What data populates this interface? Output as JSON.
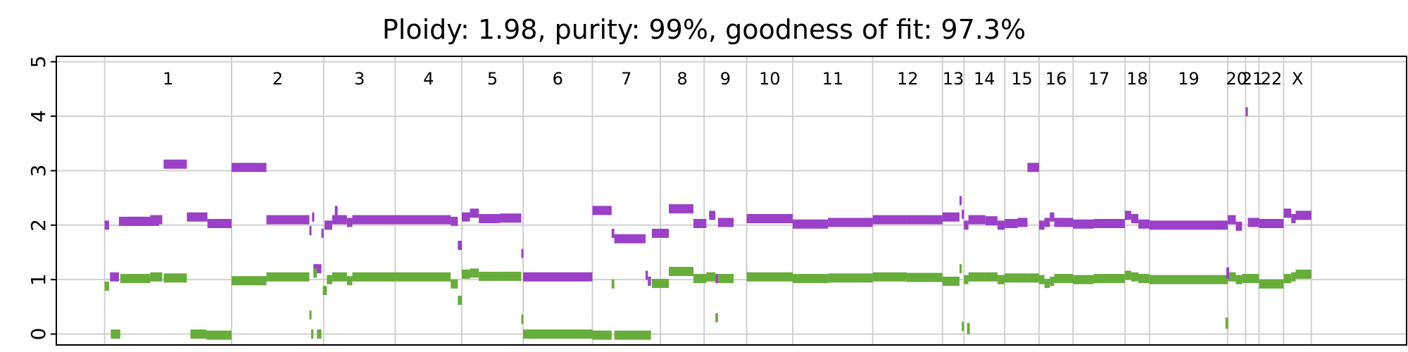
{
  "chart_data": {
    "type": "scatter",
    "title": "Ploidy: 1.98, purity: 99%, goodness of fit: 97.3%",
    "xlabel": "",
    "ylabel": "",
    "ylim": [
      -0.2,
      5.1
    ],
    "xlim": [
      0,
      3.02
    ],
    "yticks": [
      0,
      1,
      2,
      3,
      4,
      5
    ],
    "grid": true,
    "colors": {
      "major": "#9B40C8",
      "minor": "#66AD3A",
      "grid": "#d0d0d0"
    },
    "chromosomes": [
      {
        "label": "1",
        "start": 0.108,
        "end": 0.392
      },
      {
        "label": "2",
        "start": 0.392,
        "end": 0.598
      },
      {
        "label": "3",
        "start": 0.598,
        "end": 0.758
      },
      {
        "label": "4",
        "start": 0.758,
        "end": 0.907
      },
      {
        "label": "5",
        "start": 0.907,
        "end": 1.044
      },
      {
        "label": "6",
        "start": 1.044,
        "end": 1.199
      },
      {
        "label": "7",
        "start": 1.199,
        "end": 1.351
      },
      {
        "label": "8",
        "start": 1.351,
        "end": 1.449
      },
      {
        "label": "9",
        "start": 1.449,
        "end": 1.544
      },
      {
        "label": "10",
        "start": 1.544,
        "end": 1.647
      },
      {
        "label": "11",
        "start": 1.647,
        "end": 1.826
      },
      {
        "label": "12",
        "start": 1.826,
        "end": 1.982
      },
      {
        "label": "13",
        "start": 1.982,
        "end": 2.03
      },
      {
        "label": "14",
        "start": 2.03,
        "end": 2.121
      },
      {
        "label": "15",
        "start": 2.121,
        "end": 2.198
      },
      {
        "label": "16",
        "start": 2.198,
        "end": 2.274
      },
      {
        "label": "17",
        "start": 2.274,
        "end": 2.39
      },
      {
        "label": "18",
        "start": 2.39,
        "end": 2.445
      },
      {
        "label": "19",
        "start": 2.445,
        "end": 2.62
      },
      {
        "label": "20",
        "start": 2.62,
        "end": 2.66
      },
      {
        "label": "21",
        "start": 2.66,
        "end": 2.69
      },
      {
        "label": "22",
        "start": 2.69,
        "end": 2.745
      },
      {
        "label": "X",
        "start": 2.745,
        "end": 2.807
      }
    ],
    "series": [
      {
        "color": "#9B40C8",
        "segments": [
          [
            0.108,
            0.118,
            2.0
          ],
          [
            0.12,
            0.14,
            1.05
          ],
          [
            0.14,
            0.23,
            2.07
          ],
          [
            0.16,
            0.21,
            2.07
          ],
          [
            0.21,
            0.237,
            2.1
          ],
          [
            0.24,
            0.292,
            3.12
          ],
          [
            0.292,
            0.338,
            2.15
          ],
          [
            0.338,
            0.392,
            2.03
          ],
          [
            0.392,
            0.47,
            3.06
          ],
          [
            0.47,
            0.566,
            2.1
          ],
          [
            0.566,
            0.57,
            1.9
          ],
          [
            0.572,
            0.577,
            2.15
          ],
          [
            0.575,
            0.593,
            1.2
          ],
          [
            0.593,
            0.598,
            1.85
          ],
          [
            0.6,
            0.617,
            2.0
          ],
          [
            0.617,
            0.65,
            2.1
          ],
          [
            0.65,
            0.662,
            2.05
          ],
          [
            0.662,
            0.758,
            2.1
          ],
          [
            0.758,
            0.882,
            2.1
          ],
          [
            0.882,
            0.898,
            2.07
          ],
          [
            0.898,
            0.907,
            1.63
          ],
          [
            0.907,
            0.925,
            2.15
          ],
          [
            0.925,
            0.945,
            2.22
          ],
          [
            0.945,
            0.992,
            2.12
          ],
          [
            0.992,
            1.04,
            2.13
          ],
          [
            1.04,
            1.044,
            1.48
          ],
          [
            1.044,
            1.199,
            1.05
          ],
          [
            1.199,
            1.242,
            2.27
          ],
          [
            1.242,
            1.248,
            1.85
          ],
          [
            1.248,
            1.318,
            1.75
          ],
          [
            1.318,
            1.323,
            1.08
          ],
          [
            1.323,
            1.33,
            0.97
          ],
          [
            1.332,
            1.37,
            1.85
          ],
          [
            1.37,
            1.425,
            2.3
          ],
          [
            1.425,
            1.454,
            2.03
          ],
          [
            1.46,
            1.474,
            2.18
          ],
          [
            1.474,
            1.48,
            1.02
          ],
          [
            1.48,
            1.515,
            2.05
          ],
          [
            1.544,
            1.647,
            2.12
          ],
          [
            1.647,
            1.726,
            2.02
          ],
          [
            1.726,
            1.826,
            2.05
          ],
          [
            1.826,
            1.902,
            2.1
          ],
          [
            1.902,
            1.982,
            2.1
          ],
          [
            1.982,
            2.02,
            2.15
          ],
          [
            2.02,
            2.025,
            2.45
          ],
          [
            2.025,
            2.03,
            2.2
          ],
          [
            2.03,
            2.04,
            2.0
          ],
          [
            2.04,
            2.078,
            2.1
          ],
          [
            2.078,
            2.105,
            2.08
          ],
          [
            2.105,
            2.121,
            2.0
          ],
          [
            2.121,
            2.15,
            2.03
          ],
          [
            2.15,
            2.172,
            2.05
          ],
          [
            2.172,
            2.198,
            3.06
          ],
          [
            2.198,
            2.21,
            2.0
          ],
          [
            2.21,
            2.222,
            2.05
          ],
          [
            2.222,
            2.232,
            2.15
          ],
          [
            2.232,
            2.274,
            2.05
          ],
          [
            2.274,
            2.32,
            2.02
          ],
          [
            2.32,
            2.39,
            2.03
          ],
          [
            2.39,
            2.404,
            2.18
          ],
          [
            2.404,
            2.42,
            2.12
          ],
          [
            2.42,
            2.445,
            2.02
          ],
          [
            2.445,
            2.62,
            2.0
          ],
          [
            2.62,
            2.638,
            2.1
          ],
          [
            2.638,
            2.652,
            1.98
          ],
          [
            2.66,
            2.665,
            4.08
          ],
          [
            2.665,
            2.69,
            2.05
          ],
          [
            2.69,
            2.745,
            2.03
          ],
          [
            2.745,
            2.762,
            2.22
          ],
          [
            2.762,
            2.772,
            2.12
          ],
          [
            2.772,
            2.807,
            2.18
          ]
        ]
      },
      {
        "color": "#66AD3A",
        "segments": [
          [
            0.108,
            0.118,
            0.88
          ],
          [
            0.122,
            0.143,
            0.0
          ],
          [
            0.143,
            0.21,
            1.02
          ],
          [
            0.21,
            0.237,
            1.05
          ],
          [
            0.24,
            0.292,
            1.03
          ],
          [
            0.3,
            0.336,
            0.0
          ],
          [
            0.336,
            0.392,
            -0.02
          ],
          [
            0.392,
            0.47,
            0.98
          ],
          [
            0.47,
            0.566,
            1.05
          ],
          [
            0.566,
            0.57,
            0.35
          ],
          [
            0.57,
            0.575,
            0.0
          ],
          [
            0.575,
            0.583,
            1.12
          ],
          [
            0.583,
            0.593,
            0.0
          ],
          [
            0.596,
            0.605,
            0.8
          ],
          [
            0.605,
            0.617,
            1.0
          ],
          [
            0.617,
            0.65,
            1.05
          ],
          [
            0.65,
            0.662,
            0.98
          ],
          [
            0.662,
            0.758,
            1.05
          ],
          [
            0.758,
            0.882,
            1.05
          ],
          [
            0.882,
            0.898,
            0.92
          ],
          [
            0.898,
            0.907,
            0.62
          ],
          [
            0.907,
            0.925,
            1.1
          ],
          [
            0.925,
            0.945,
            1.12
          ],
          [
            0.945,
            0.992,
            1.06
          ],
          [
            0.992,
            1.04,
            1.06
          ],
          [
            1.04,
            1.044,
            0.27
          ],
          [
            1.044,
            1.199,
            0.0
          ],
          [
            1.199,
            1.242,
            -0.02
          ],
          [
            1.242,
            1.248,
            0.92
          ],
          [
            1.248,
            1.33,
            -0.02
          ],
          [
            1.332,
            1.37,
            0.93
          ],
          [
            1.37,
            1.425,
            1.15
          ],
          [
            1.425,
            1.454,
            1.02
          ],
          [
            1.454,
            1.474,
            1.05
          ],
          [
            1.474,
            1.48,
            0.3
          ],
          [
            1.48,
            1.515,
            1.02
          ],
          [
            1.544,
            1.647,
            1.05
          ],
          [
            1.647,
            1.726,
            1.02
          ],
          [
            1.726,
            1.826,
            1.03
          ],
          [
            1.826,
            1.902,
            1.05
          ],
          [
            1.902,
            1.982,
            1.04
          ],
          [
            1.982,
            2.02,
            0.97
          ],
          [
            2.02,
            2.025,
            1.2
          ],
          [
            2.025,
            2.03,
            0.14
          ],
          [
            2.03,
            2.04,
            1.0
          ],
          [
            2.04,
            2.078,
            1.05
          ],
          [
            2.078,
            2.105,
            1.05
          ],
          [
            2.105,
            2.121,
            1.0
          ],
          [
            2.121,
            2.15,
            1.03
          ],
          [
            2.15,
            2.172,
            1.03
          ],
          [
            2.172,
            2.198,
            1.03
          ],
          [
            2.198,
            2.21,
            1.0
          ],
          [
            2.21,
            2.222,
            0.93
          ],
          [
            2.222,
            2.232,
            0.97
          ],
          [
            2.232,
            2.274,
            1.02
          ],
          [
            2.274,
            2.32,
            1.0
          ],
          [
            2.32,
            2.39,
            1.02
          ],
          [
            2.39,
            2.404,
            1.08
          ],
          [
            2.404,
            2.42,
            1.05
          ],
          [
            2.42,
            2.445,
            1.02
          ],
          [
            2.445,
            2.62,
            1.0
          ],
          [
            2.62,
            2.638,
            1.05
          ],
          [
            2.638,
            2.652,
            1.0
          ],
          [
            2.652,
            2.69,
            1.02
          ],
          [
            2.69,
            2.745,
            0.92
          ],
          [
            2.745,
            2.762,
            1.02
          ],
          [
            2.762,
            2.772,
            1.05
          ],
          [
            2.772,
            2.807,
            1.1
          ]
        ]
      }
    ],
    "point_marks": [
      {
        "color": "#66AD3A",
        "x": 2.04,
        "y": 0.1
      },
      {
        "color": "#66AD3A",
        "x": 2.618,
        "y": 0.2
      },
      {
        "color": "#9B40C8",
        "x": 2.62,
        "y": 1.12
      },
      {
        "color": "#9B40C8",
        "x": 0.626,
        "y": 2.25
      }
    ]
  }
}
